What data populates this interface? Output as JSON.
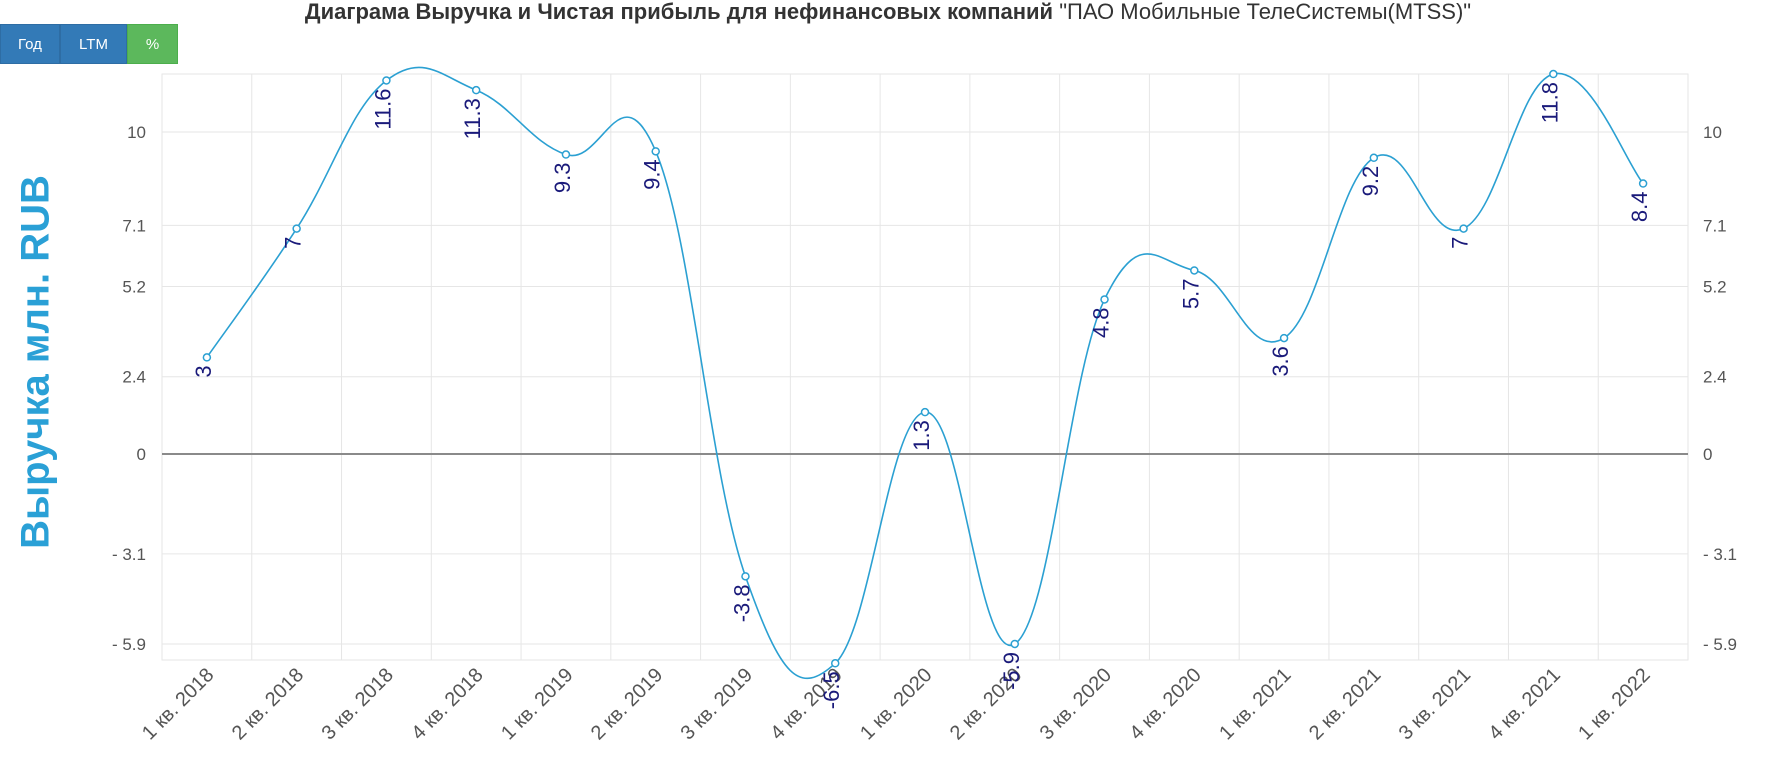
{
  "header": {
    "title_bold": "Диаграма Выручка и Чистая прибыль для нефинансовых компаний",
    "title_company": "\"ПАО Мобильные ТелеСистемы(MTSS)\""
  },
  "buttons": {
    "year_label": "Год",
    "ltm_label": "LTM",
    "percent_label": "%"
  },
  "colors": {
    "line": "#2ba0d2",
    "data_label": "#1a1a7a",
    "button_blue": "#337ab7",
    "button_green": "#5cb85c",
    "ylabel": "#2aa0d6"
  },
  "chart_data": {
    "type": "line",
    "ylabel": "Выручка млн. RUB",
    "categories": [
      "1 кв. 2018",
      "2 кв. 2018",
      "3 кв. 2018",
      "4 кв. 2018",
      "1 кв. 2019",
      "2 кв. 2019",
      "3 кв. 2019",
      "4 кв. 2019",
      "1 кв. 2020",
      "2 кв. 2020",
      "3 кв. 2020",
      "4 кв. 2020",
      "1 кв. 2021",
      "2 кв. 2021",
      "3 кв. 2021",
      "4 кв. 2021",
      "1 кв. 2022"
    ],
    "series": [
      {
        "values": [
          3,
          7,
          11.6,
          11.3,
          9.3,
          9.4,
          -3.8,
          -6.5,
          1.3,
          -5.9,
          4.8,
          5.7,
          3.6,
          9.2,
          7,
          11.8,
          8.4
        ],
        "labels": [
          "3",
          "7",
          "11.6",
          "11.3",
          "9.3",
          "9.4",
          "-3.8",
          "-6.5",
          "1.3",
          "-5.9",
          "4.8",
          "5.7",
          "3.6",
          "9.2",
          "7",
          "11.8",
          "8.4"
        ]
      }
    ],
    "yticks": [
      10,
      7.1,
      5.2,
      2.4,
      0,
      -3.1,
      -5.9
    ],
    "ytick_labels": [
      "10",
      "7.1",
      "5.2",
      "2.4",
      "0",
      "- 3.1",
      "- 5.9"
    ],
    "grid": true,
    "legend": "none"
  }
}
